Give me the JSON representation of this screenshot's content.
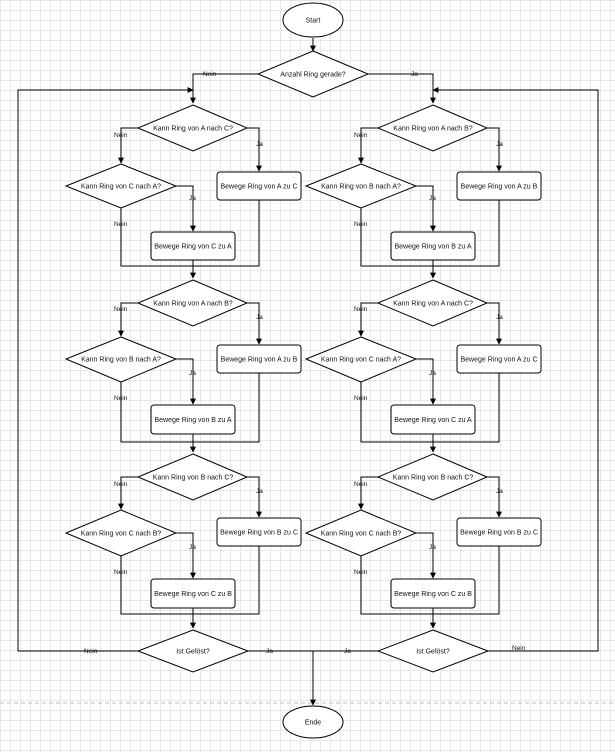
{
  "diagram": {
    "start": "Start",
    "end": "Ende",
    "q_even": "Anzahl Ring gerade?",
    "yes": "Ja",
    "no": "Nein",
    "left": {
      "b1": {
        "q_main": "Kann Ring von A nach C?",
        "a_main": "Bewege Ring von A zu C",
        "q_sub": "Kann Ring von C nach A?",
        "a_sub": "Bewege Ring von C zu A"
      },
      "b2": {
        "q_main": "Kann Ring von A nach B?",
        "a_main": "Bewege Ring von A zu B",
        "q_sub": "Kann Ring von B nach A?",
        "a_sub": "Bewege Ring von B zu A"
      },
      "b3": {
        "q_main": "Kann Ring von B nach C?",
        "a_main": "Bewege Ring von B zu C",
        "q_sub": "Kann Ring von C nach B?",
        "a_sub": "Bewege Ring von C zu B"
      },
      "solved": "Ist Gelöst?"
    },
    "right": {
      "b1": {
        "q_main": "Kann Ring von A nach B?",
        "a_main": "Bewege Ring von A zu B",
        "q_sub": "Kann Ring von B nach A?",
        "a_sub": "Bewege Ring von B zu A"
      },
      "b2": {
        "q_main": "Kann Ring von A nach C?",
        "a_main": "Bewege Ring von A zu C",
        "q_sub": "Kann Ring von C nach A?",
        "a_sub": "Bewege Ring von C zu A"
      },
      "b3": {
        "q_main": "Kann Ring von B nach C?",
        "a_main": "Bewege Ring von B zu C",
        "q_sub": "Kann Ring von C nach B?",
        "a_sub": "Bewege Ring von C zu B"
      },
      "solved": "Ist Gelöst?"
    }
  }
}
